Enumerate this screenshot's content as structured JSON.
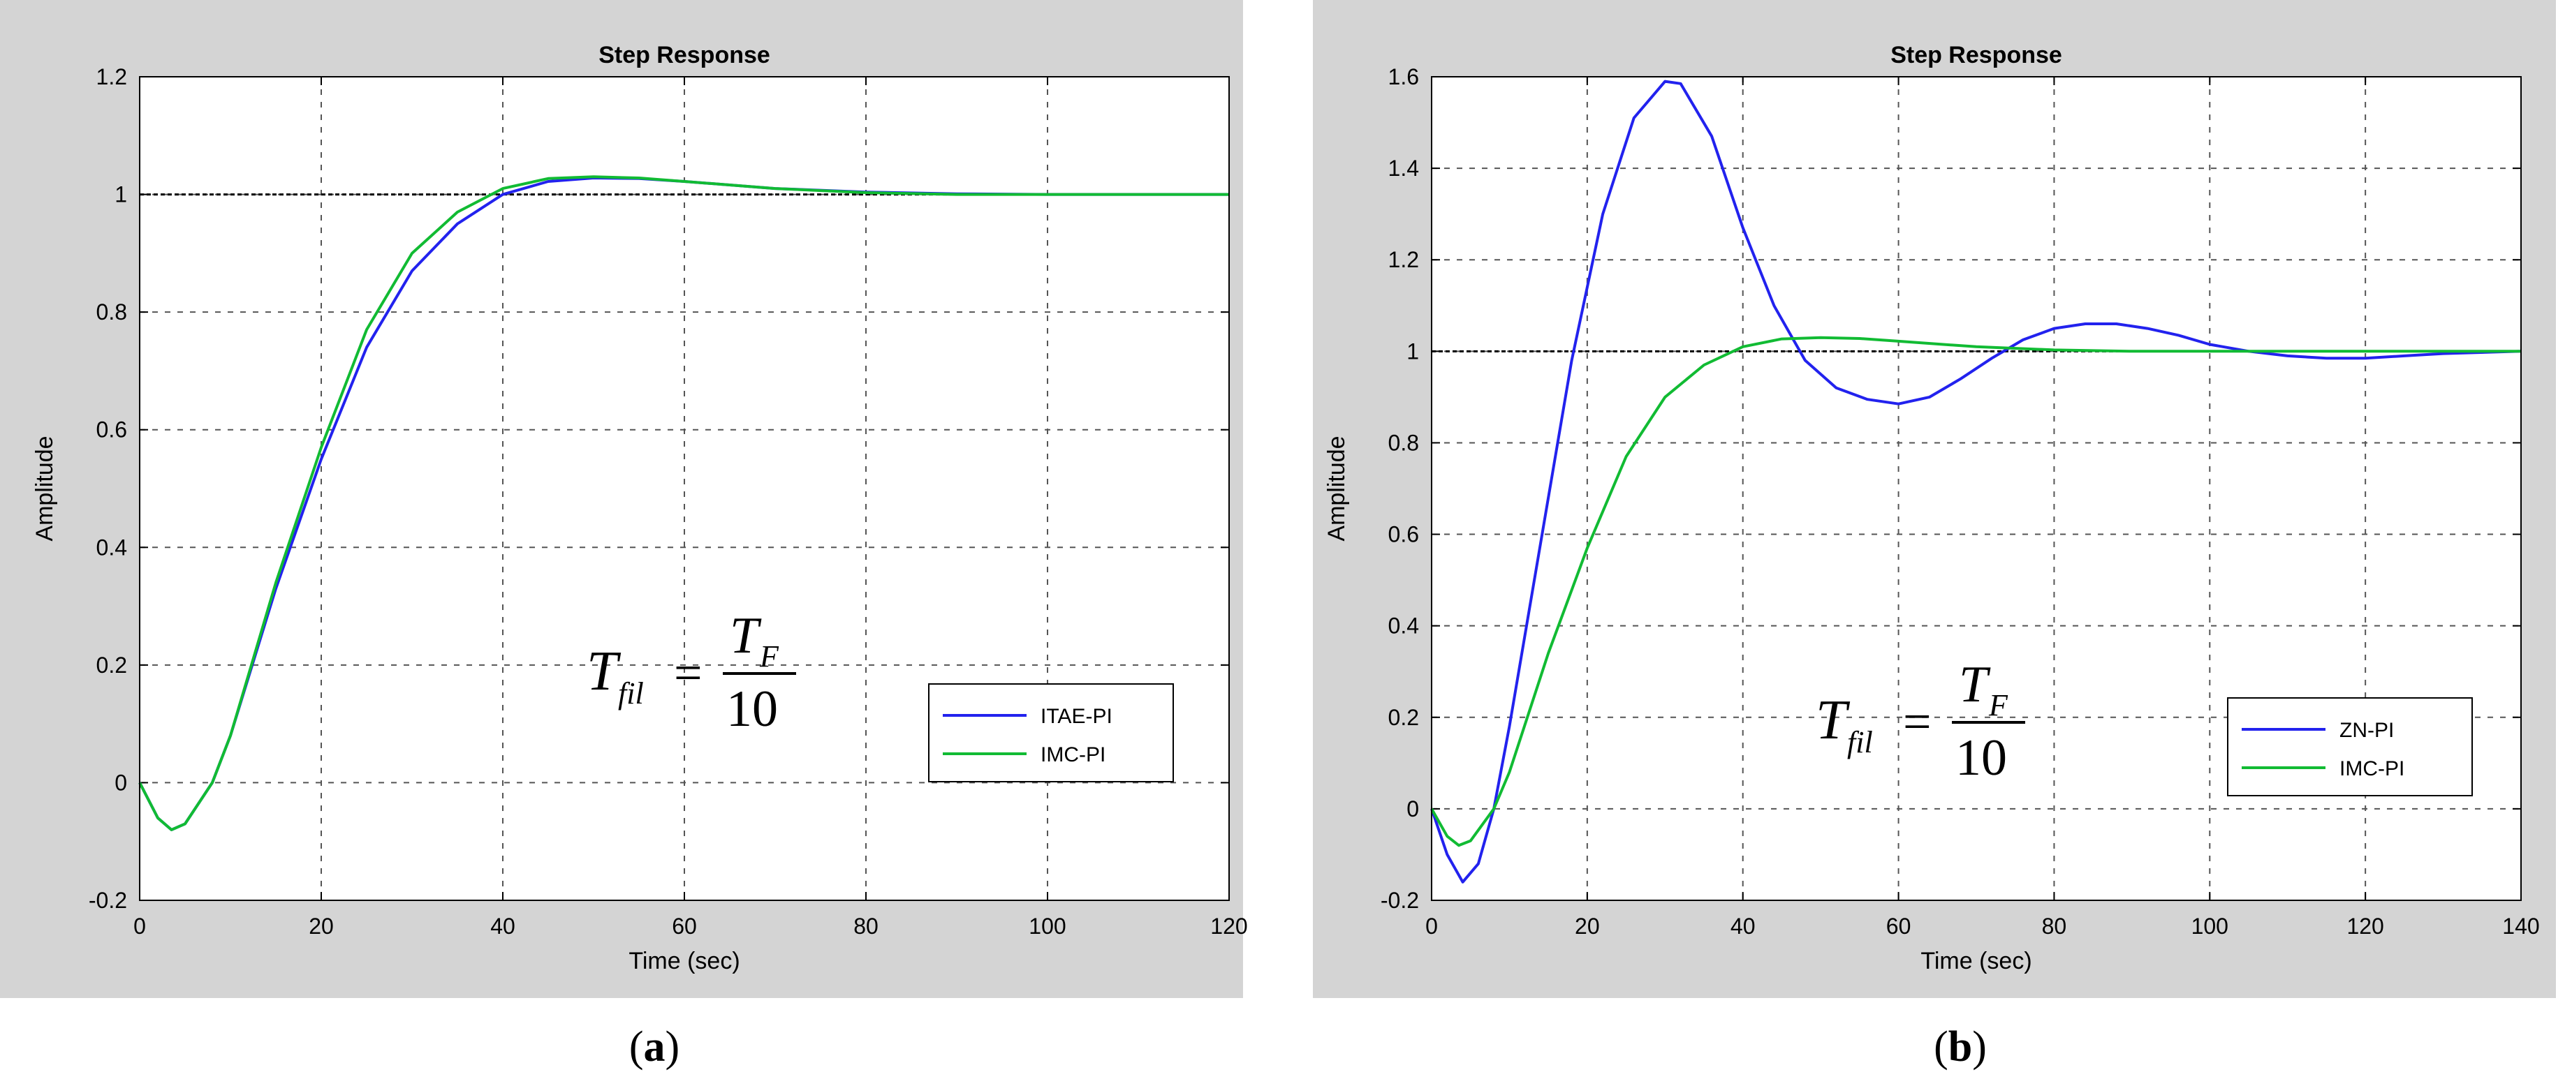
{
  "figures": [
    {
      "caption_open": "(",
      "caption_letter": "a",
      "caption_close": ")"
    },
    {
      "caption_open": "(",
      "caption_letter": "b",
      "caption_close": ")"
    }
  ],
  "formula": {
    "lhs": "T",
    "lhs_sub": "fil",
    "equals": "=",
    "num": "T",
    "num_sub": "F",
    "den": "10"
  },
  "colors": {
    "blue": "#2222ee",
    "green": "#11bb33",
    "panel": "#d4d4d4",
    "axes": "#ffffff"
  },
  "chart_data": [
    {
      "type": "line",
      "title": "Step Response",
      "xlabel": "Time (sec)",
      "ylabel": "Amplitude",
      "xlim": [
        0,
        120
      ],
      "ylim": [
        -0.2,
        1.2
      ],
      "xticks": [
        0,
        20,
        40,
        60,
        80,
        100,
        120
      ],
      "yticks": [
        -0.2,
        0,
        0.2,
        0.4,
        0.6,
        0.8,
        1,
        1.2
      ],
      "xtick_labels": [
        "0",
        "20",
        "40",
        "60",
        "80",
        "100",
        "120"
      ],
      "ytick_labels": [
        "-0.2",
        "0",
        "0.2",
        "0.4",
        "0.6",
        "0.8",
        "1",
        "1.2"
      ],
      "grid": true,
      "reference_line": 1,
      "legend_position": "lower-right",
      "series": [
        {
          "name": "ITAE-PI",
          "color": "#2222ee",
          "x": [
            0,
            2,
            3.5,
            5,
            8,
            10,
            15,
            20,
            25,
            30,
            35,
            40,
            45,
            50,
            55,
            60,
            70,
            80,
            90,
            100,
            110,
            120
          ],
          "y": [
            0,
            -0.06,
            -0.08,
            -0.07,
            0.0,
            0.08,
            0.33,
            0.55,
            0.74,
            0.87,
            0.95,
            1.0,
            1.022,
            1.028,
            1.027,
            1.022,
            1.01,
            1.004,
            1.001,
            1.0,
            1.0,
            1.0
          ]
        },
        {
          "name": "IMC-PI",
          "color": "#11bb33",
          "x": [
            0,
            2,
            3.5,
            5,
            8,
            10,
            15,
            20,
            25,
            30,
            35,
            40,
            45,
            50,
            55,
            60,
            70,
            80,
            90,
            100,
            110,
            120
          ],
          "y": [
            0,
            -0.06,
            -0.08,
            -0.07,
            0.0,
            0.08,
            0.34,
            0.57,
            0.77,
            0.9,
            0.97,
            1.01,
            1.027,
            1.03,
            1.028,
            1.022,
            1.01,
            1.003,
            1.0,
            1.0,
            1.0,
            1.0
          ]
        }
      ]
    },
    {
      "type": "line",
      "title": "Step Response",
      "xlabel": "Time (sec)",
      "ylabel": "Amplitude",
      "xlim": [
        0,
        140
      ],
      "ylim": [
        -0.2,
        1.6
      ],
      "xticks": [
        0,
        20,
        40,
        60,
        80,
        100,
        120,
        140
      ],
      "yticks": [
        -0.2,
        0,
        0.2,
        0.4,
        0.6,
        0.8,
        1,
        1.2,
        1.4,
        1.6
      ],
      "xtick_labels": [
        "0",
        "20",
        "40",
        "60",
        "80",
        "100",
        "120",
        "140"
      ],
      "ytick_labels": [
        "-0.2",
        "0",
        "0.2",
        "0.4",
        "0.6",
        "0.8",
        "1",
        "1.2",
        "1.4",
        "1.6"
      ],
      "grid": true,
      "reference_line": 1,
      "legend_position": "lower-right",
      "series": [
        {
          "name": "ZN-PI",
          "color": "#2222ee",
          "x": [
            0,
            2,
            4,
            6,
            8,
            10,
            14,
            18,
            22,
            26,
            30,
            32,
            36,
            40,
            44,
            48,
            52,
            56,
            60,
            64,
            68,
            72,
            76,
            80,
            84,
            88,
            92,
            96,
            100,
            105,
            110,
            115,
            120,
            125,
            130,
            140
          ],
          "y": [
            0,
            -0.1,
            -0.16,
            -0.12,
            0.0,
            0.18,
            0.58,
            0.98,
            1.3,
            1.51,
            1.59,
            1.585,
            1.47,
            1.27,
            1.1,
            0.98,
            0.92,
            0.895,
            0.885,
            0.9,
            0.94,
            0.985,
            1.025,
            1.05,
            1.06,
            1.06,
            1.05,
            1.035,
            1.015,
            1.0,
            0.99,
            0.985,
            0.985,
            0.99,
            0.995,
            1.0
          ]
        },
        {
          "name": "IMC-PI",
          "color": "#11bb33",
          "x": [
            0,
            2,
            3.5,
            5,
            8,
            10,
            15,
            20,
            25,
            30,
            35,
            40,
            45,
            50,
            55,
            60,
            70,
            80,
            90,
            100,
            110,
            120,
            130,
            140
          ],
          "y": [
            0,
            -0.06,
            -0.08,
            -0.07,
            0.0,
            0.08,
            0.34,
            0.57,
            0.77,
            0.9,
            0.97,
            1.01,
            1.027,
            1.03,
            1.028,
            1.022,
            1.01,
            1.003,
            1.0,
            1.0,
            1.0,
            1.0,
            1.0,
            1.0
          ]
        }
      ]
    }
  ]
}
